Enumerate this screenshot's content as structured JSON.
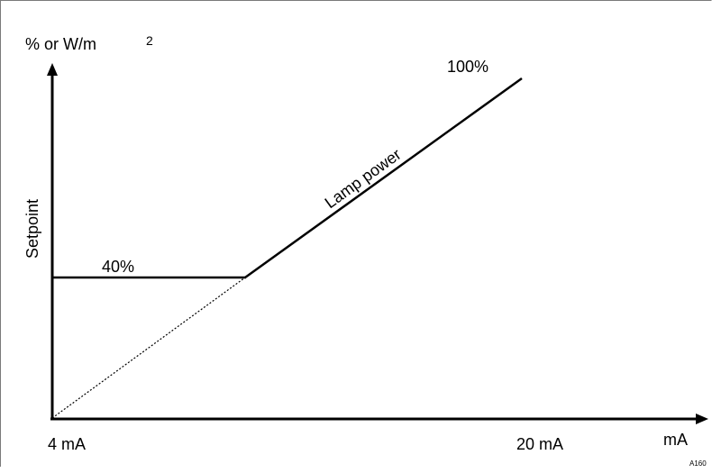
{
  "diagram": {
    "y_axis_unit": "% or W/m",
    "y_axis_unit_superscript": "2",
    "y_axis_label": "Setpoint",
    "x_axis_unit": "mA",
    "x_start_label": "4 mA",
    "x_end_label": "20 mA",
    "min_level_label": "40%",
    "max_level_label": "100%",
    "curve_label": "Lamp power",
    "figure_code": "A160"
  },
  "chart_data": {
    "type": "line",
    "x_range_mA": [
      4,
      20
    ],
    "series": [
      {
        "name": "Lamp power",
        "style": "solid",
        "points": [
          [
            4,
            40
          ],
          [
            9,
            40
          ],
          [
            9,
            40
          ],
          [
            19.3,
            100
          ]
        ]
      },
      {
        "style": "dotted",
        "points": [
          [
            4,
            0
          ],
          [
            9,
            40
          ]
        ]
      }
    ],
    "annotations": [
      "40%",
      "100%",
      "Lamp power"
    ]
  }
}
